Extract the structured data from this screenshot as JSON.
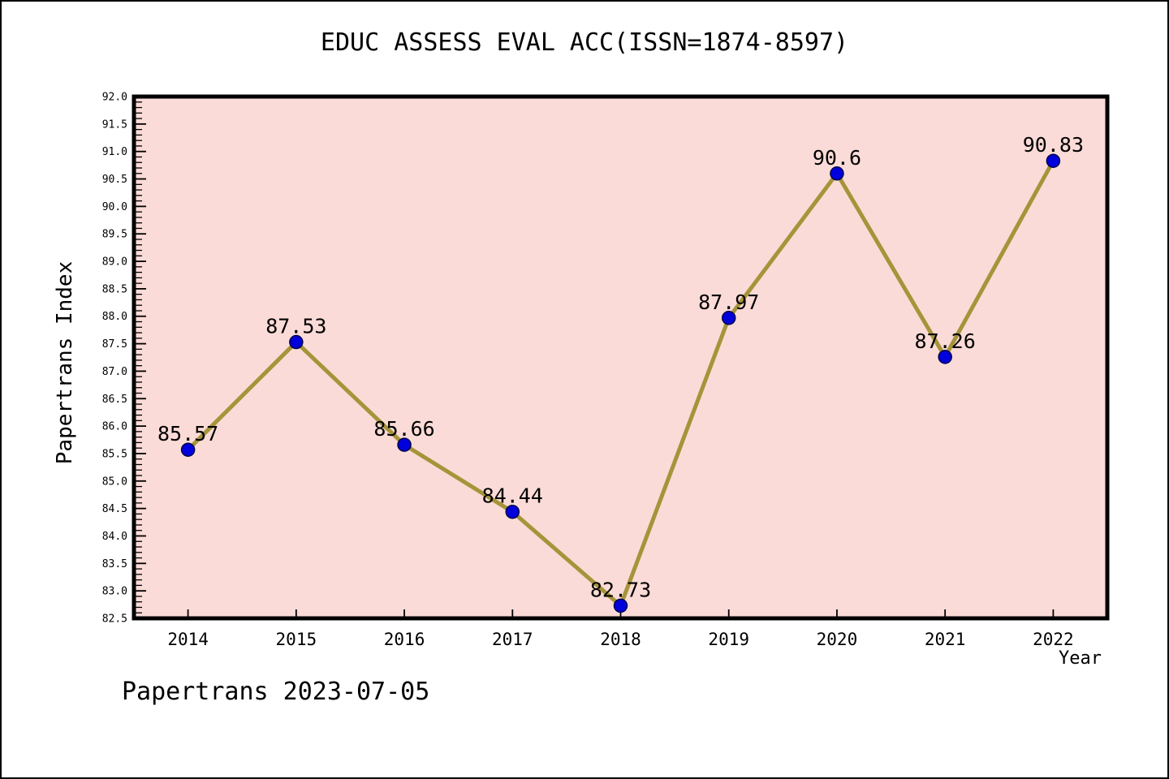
{
  "page": {
    "footer": "Papertrans 2023-07-05"
  },
  "chart_data": {
    "type": "line",
    "title": "EDUC ASSESS EVAL ACC(ISSN=1874-8597)",
    "xlabel": "Year",
    "ylabel": "Papertrans Index",
    "x": [
      2014,
      2015,
      2016,
      2017,
      2018,
      2019,
      2020,
      2021,
      2022
    ],
    "values": [
      85.57,
      87.53,
      85.66,
      84.44,
      82.73,
      87.97,
      90.6,
      87.26,
      90.83
    ],
    "point_labels": [
      "85.57",
      "87.53",
      "85.66",
      "84.44",
      "82.73",
      "87.97",
      "90.6",
      "87.26",
      "90.83"
    ],
    "xlim": [
      2013.5,
      2022.5
    ],
    "ylim": [
      82.5,
      92.0
    ],
    "ytick_step": 0.5,
    "ytick_minor_step": 0.1,
    "grid": false,
    "legend_position": "none",
    "colors": {
      "plot_bg": "#fbdbd7",
      "line": "#a6943a",
      "marker": "#0000dd",
      "marker_edge": "#00004a",
      "axis": "#000000",
      "text": "#000000"
    }
  }
}
